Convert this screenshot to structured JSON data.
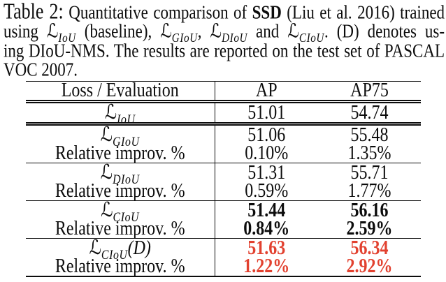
{
  "colors": {
    "highlight_red": "#e2412f",
    "ink": "#0c0c0c",
    "background": "#ffffff"
  },
  "caption": {
    "label": "Table 2:",
    "loss_symbol": "ℒ",
    "line1": {
      "t1": " Quantitative comparison of ",
      "bold": "SSD",
      "t2": " (Liu et al. 2016) trained"
    },
    "line2": {
      "t1": "using ",
      "sub1": "IoU",
      "t2": " (baseline), ",
      "sub2": "GIoU",
      "t3": ", ",
      "sub3": "DIoU",
      "t4": " and ",
      "sub4": "CIoU",
      "t5": ". (D) denotes us-"
    },
    "line3": "ing DIoU-NMS. The results are reported on the test set of PASCAL",
    "line4": "VOC 2007."
  },
  "table": {
    "loss_symbol": "ℒ",
    "headers": [
      "Loss / Evaluation",
      "AP",
      "AP75"
    ],
    "rows": [
      {
        "sub": "IoU",
        "ap": "51.01",
        "ap75": "54.74"
      },
      {
        "sub": "GIoU",
        "ap": "51.06",
        "ap75": "55.48"
      },
      {
        "label": "Relative improv. %",
        "ap": "0.10%",
        "ap75": "1.35%"
      },
      {
        "sub": "DIoU",
        "ap": "51.31",
        "ap75": "55.71"
      },
      {
        "label": "Relative improv. %",
        "ap": "0.59%",
        "ap75": "1.77%"
      },
      {
        "sub": "CIoU",
        "ap": "51.44",
        "ap75": "56.16"
      },
      {
        "label": "Relative improv. %",
        "ap": "0.84%",
        "ap75": "2.59%"
      },
      {
        "sub": "CIoU",
        "suffix": "(D)",
        "ap": "51.63",
        "ap75": "56.34"
      },
      {
        "label": "Relative improv. %",
        "ap": "1.22%",
        "ap75": "2.92%"
      }
    ]
  }
}
